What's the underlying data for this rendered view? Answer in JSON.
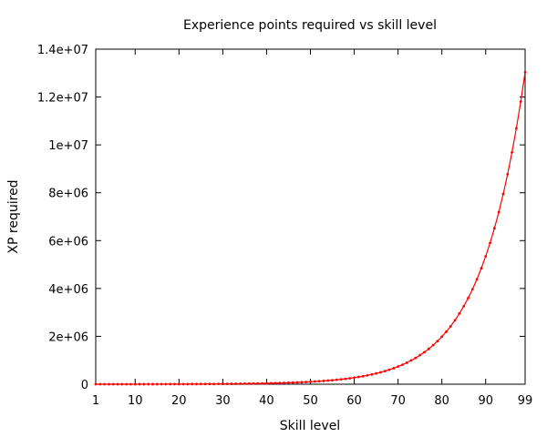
{
  "chart_data": {
    "type": "line",
    "title": "Experience points required vs skill level",
    "xlabel": "Skill level",
    "ylabel": "XP required",
    "xlim": [
      1,
      99
    ],
    "ylim": [
      0,
      14000000
    ],
    "x_ticks": [
      1,
      10,
      20,
      30,
      40,
      50,
      60,
      70,
      80,
      90,
      99
    ],
    "x_tick_labels": [
      "1",
      "10",
      "20",
      "30",
      "40",
      "50",
      "60",
      "70",
      "80",
      "90",
      "99"
    ],
    "y_ticks": [
      0,
      2000000,
      4000000,
      6000000,
      8000000,
      10000000,
      12000000,
      14000000
    ],
    "y_tick_labels": [
      "0",
      "2e+06",
      "4e+06",
      "6e+06",
      "8e+06",
      "1e+07",
      "1.2e+07",
      "1.4e+07"
    ],
    "grid": false,
    "legend": "none",
    "series": [
      {
        "color": "#ff0000",
        "marker": "dot",
        "x": [
          1,
          2,
          3,
          4,
          5,
          6,
          7,
          8,
          9,
          10,
          11,
          12,
          13,
          14,
          15,
          16,
          17,
          18,
          19,
          20,
          21,
          22,
          23,
          24,
          25,
          26,
          27,
          28,
          29,
          30,
          31,
          32,
          33,
          34,
          35,
          36,
          37,
          38,
          39,
          40,
          41,
          42,
          43,
          44,
          45,
          46,
          47,
          48,
          49,
          50,
          51,
          52,
          53,
          54,
          55,
          56,
          57,
          58,
          59,
          60,
          61,
          62,
          63,
          64,
          65,
          66,
          67,
          68,
          69,
          70,
          71,
          72,
          73,
          74,
          75,
          76,
          77,
          78,
          79,
          80,
          81,
          82,
          83,
          84,
          85,
          86,
          87,
          88,
          89,
          90,
          91,
          92,
          93,
          94,
          95,
          96,
          97,
          98,
          99
        ],
        "values": [
          0,
          83,
          174,
          276,
          388,
          512,
          650,
          801,
          969,
          1154,
          1358,
          1584,
          1833,
          2107,
          2411,
          2746,
          3115,
          3523,
          3973,
          4470,
          5018,
          5624,
          6291,
          7028,
          7842,
          8740,
          9730,
          10824,
          12031,
          13363,
          14833,
          16456,
          18247,
          20224,
          22406,
          24815,
          27473,
          30408,
          33648,
          37224,
          41171,
          45529,
          50339,
          55649,
          61512,
          67983,
          75127,
          83014,
          91721,
          101333,
          111945,
          123660,
          136594,
          150872,
          166636,
          184040,
          203254,
          224466,
          247886,
          273742,
          302288,
          333804,
          368599,
          407015,
          449428,
          496254,
          547953,
          605032,
          668051,
          737627,
          814445,
          899257,
          992895,
          1096278,
          1210421,
          1336443,
          1475581,
          1629200,
          1798808,
          1986068,
          2192818,
          2421087,
          2673114,
          2951373,
          3258594,
          3597792,
          3972294,
          4385776,
          4842295,
          5346332,
          5902831,
          6517253,
          7195629,
          7944614,
          8771558,
          9684577,
          10692629,
          11805606,
          13034431
        ]
      }
    ]
  }
}
